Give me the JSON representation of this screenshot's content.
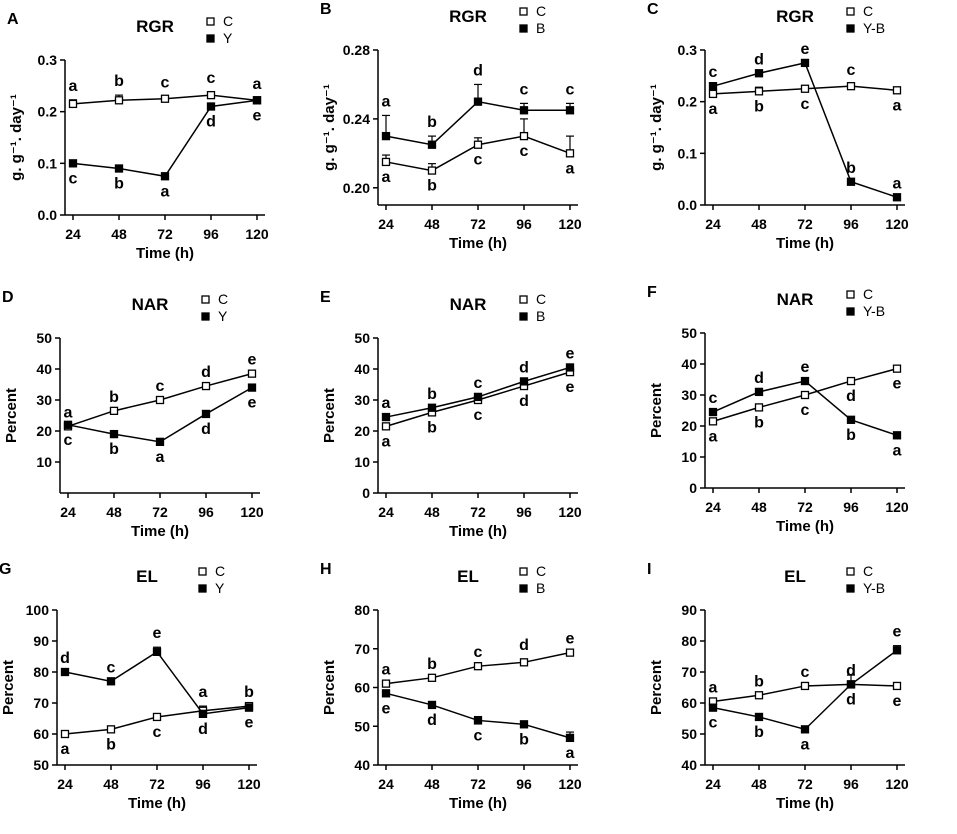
{
  "chart_data": [
    {
      "type": "line",
      "panel": "A",
      "title": "RGR",
      "xlabel": "Time (h)",
      "ylabel": "g. g⁻¹. day⁻¹",
      "x": [
        24,
        48,
        72,
        96,
        120
      ],
      "xticks": [
        "24",
        "48",
        "72",
        "96",
        "120"
      ],
      "ylim": [
        0,
        0.3
      ],
      "yticks": [
        0,
        0.1,
        0.2,
        0.3
      ],
      "ytick_labels": [
        "0.0",
        "0.1",
        "0.2",
        "0.3"
      ],
      "series": [
        {
          "name": "C",
          "marker": "open",
          "values": [
            0.215,
            0.222,
            0.225,
            0.232,
            0.222
          ],
          "errors": [
            0.008,
            0.01,
            0.004,
            0.006,
            0.004
          ],
          "letters": [
            "a",
            "b",
            "c",
            "c",
            "a"
          ],
          "letter_pos": [
            "above",
            "above",
            "above",
            "above",
            "above"
          ]
        },
        {
          "name": "Y",
          "marker": "filled",
          "values": [
            0.1,
            0.09,
            0.075,
            0.21,
            0.222
          ],
          "errors": [
            0,
            0,
            0,
            0,
            0
          ],
          "letters": [
            "c",
            "b",
            "a",
            "d",
            "e"
          ],
          "letter_pos": [
            "below",
            "below",
            "below",
            "below",
            "below"
          ]
        }
      ]
    },
    {
      "type": "line",
      "panel": "B",
      "title": "RGR",
      "xlabel": "Time (h)",
      "ylabel": "g. g⁻¹. day⁻¹",
      "x": [
        24,
        48,
        72,
        96,
        120
      ],
      "xticks": [
        "24",
        "48",
        "72",
        "96",
        "120"
      ],
      "ylim": [
        0.19,
        0.28
      ],
      "yticks": [
        0.2,
        0.24,
        0.28
      ],
      "ytick_labels": [
        "0.20",
        "0.24",
        "0.28"
      ],
      "series": [
        {
          "name": "C",
          "marker": "open",
          "values": [
            0.215,
            0.21,
            0.225,
            0.23,
            0.22
          ],
          "errors": [
            0.004,
            0.004,
            0.004,
            0.01,
            0.01
          ],
          "letters": [
            "a",
            "b",
            "c",
            "c",
            "a"
          ],
          "letter_pos": [
            "below",
            "below",
            "below",
            "below",
            "below"
          ]
        },
        {
          "name": "B",
          "marker": "filled",
          "values": [
            0.23,
            0.225,
            0.25,
            0.245,
            0.245
          ],
          "errors": [
            0.012,
            0.005,
            0.01,
            0.004,
            0.004
          ],
          "letters": [
            "a",
            "b",
            "d",
            "c",
            "c"
          ],
          "letter_pos": [
            "above",
            "above",
            "above",
            "above",
            "above"
          ]
        }
      ]
    },
    {
      "type": "line",
      "panel": "C",
      "title": "RGR",
      "xlabel": "Time (h)",
      "ylabel": "g. g⁻¹. day⁻¹",
      "x": [
        24,
        48,
        72,
        96,
        120
      ],
      "xticks": [
        "24",
        "48",
        "72",
        "96",
        "120"
      ],
      "ylim": [
        0,
        0.3
      ],
      "yticks": [
        0,
        0.1,
        0.2,
        0.3
      ],
      "ytick_labels": [
        "0.0",
        "0.1",
        "0.2",
        "0.3"
      ],
      "series": [
        {
          "name": "C",
          "marker": "open",
          "values": [
            0.215,
            0.22,
            0.225,
            0.23,
            0.222
          ],
          "errors": [
            0.004,
            0.008,
            0.004,
            0.004,
            0.004
          ],
          "letters": [
            "a",
            "b",
            "c",
            "c",
            "a"
          ],
          "letter_pos": [
            "below",
            "below",
            "below",
            "above",
            "below"
          ]
        },
        {
          "name": "Y-B",
          "marker": "filled",
          "values": [
            0.23,
            0.255,
            0.275,
            0.045,
            0.015
          ],
          "errors": [
            0,
            0,
            0,
            0,
            0
          ],
          "letters": [
            "c",
            "d",
            "e",
            "b",
            "a"
          ],
          "letter_pos": [
            "above",
            "above",
            "above",
            "above",
            "above"
          ]
        }
      ]
    },
    {
      "type": "line",
      "panel": "D",
      "title": "NAR",
      "xlabel": "Time (h)",
      "ylabel": "Percent",
      "x": [
        24,
        48,
        72,
        96,
        120
      ],
      "xticks": [
        "24",
        "48",
        "72",
        "96",
        "120"
      ],
      "ylim": [
        0,
        50
      ],
      "yticks": [
        10,
        20,
        30,
        40,
        50
      ],
      "ytick_labels": [
        "10",
        "20",
        "30",
        "40",
        "50"
      ],
      "series": [
        {
          "name": "C",
          "marker": "open",
          "values": [
            21.5,
            26.5,
            30,
            34.5,
            38.5
          ],
          "errors": [
            0,
            0,
            0,
            0,
            0
          ],
          "letters": [
            "a",
            "b",
            "c",
            "d",
            "e"
          ],
          "letter_pos": [
            "above",
            "above",
            "above",
            "above",
            "above"
          ]
        },
        {
          "name": "Y",
          "marker": "filled",
          "values": [
            22,
            19,
            16.5,
            25.5,
            34
          ],
          "errors": [
            0,
            0,
            0,
            0,
            0
          ],
          "letters": [
            "c",
            "b",
            "a",
            "d",
            "e"
          ],
          "letter_pos": [
            "below",
            "below",
            "below",
            "below",
            "below"
          ]
        }
      ]
    },
    {
      "type": "line",
      "panel": "E",
      "title": "NAR",
      "xlabel": "Time (h)",
      "ylabel": "Percent",
      "x": [
        24,
        48,
        72,
        96,
        120
      ],
      "xticks": [
        "24",
        "48",
        "72",
        "96",
        "120"
      ],
      "ylim": [
        0,
        50
      ],
      "yticks": [
        0,
        10,
        20,
        30,
        40,
        50
      ],
      "ytick_labels": [
        "0",
        "10",
        "20",
        "30",
        "40",
        "50"
      ],
      "series": [
        {
          "name": "C",
          "marker": "open",
          "values": [
            21.5,
            26,
            30,
            34.5,
            39
          ],
          "errors": [
            0,
            0,
            0,
            0,
            0
          ],
          "letters": [
            "a",
            "b",
            "c",
            "d",
            "e"
          ],
          "letter_pos": [
            "below",
            "below",
            "below",
            "below",
            "below"
          ]
        },
        {
          "name": "B",
          "marker": "filled",
          "values": [
            24.5,
            27.5,
            31,
            36,
            40.5
          ],
          "errors": [
            0,
            0,
            0,
            0,
            0
          ],
          "letters": [
            "a",
            "b",
            "c",
            "d",
            "e"
          ],
          "letter_pos": [
            "above",
            "above",
            "above",
            "above",
            "above"
          ]
        }
      ]
    },
    {
      "type": "line",
      "panel": "F",
      "title": "NAR",
      "xlabel": "Time (h)",
      "ylabel": "Percent",
      "x": [
        24,
        48,
        72,
        96,
        120
      ],
      "xticks": [
        "24",
        "48",
        "72",
        "96",
        "120"
      ],
      "ylim": [
        0,
        50
      ],
      "yticks": [
        0,
        10,
        20,
        30,
        40,
        50
      ],
      "ytick_labels": [
        "0",
        "10",
        "20",
        "30",
        "40",
        "50"
      ],
      "series": [
        {
          "name": "C",
          "marker": "open",
          "values": [
            21.5,
            26,
            30,
            34.5,
            38.5
          ],
          "errors": [
            0,
            0,
            0,
            0,
            0
          ],
          "letters": [
            "a",
            "b",
            "c",
            "d",
            "e"
          ],
          "letter_pos": [
            "below",
            "below",
            "below",
            "below",
            "below"
          ]
        },
        {
          "name": "Y-B",
          "marker": "filled",
          "values": [
            24.5,
            31,
            34.5,
            22,
            17
          ],
          "errors": [
            0,
            0,
            0,
            0,
            0
          ],
          "letters": [
            "c",
            "d",
            "e",
            "b",
            "a"
          ],
          "letter_pos": [
            "above",
            "above",
            "above",
            "below",
            "below"
          ]
        }
      ]
    },
    {
      "type": "line",
      "panel": "G",
      "title": "EL",
      "xlabel": "Time (h)",
      "ylabel": "Percent",
      "x": [
        24,
        48,
        72,
        96,
        120
      ],
      "xticks": [
        "24",
        "48",
        "72",
        "96",
        "120"
      ],
      "ylim": [
        50,
        100
      ],
      "yticks": [
        50,
        60,
        70,
        80,
        90,
        100
      ],
      "ytick_labels": [
        "50",
        "60",
        "70",
        "80",
        "90",
        "100"
      ],
      "series": [
        {
          "name": "C",
          "marker": "open",
          "values": [
            60,
            61.5,
            65.5,
            67.5,
            69
          ],
          "errors": [
            0,
            0,
            0,
            1.5,
            0
          ],
          "letters": [
            "a",
            "b",
            "c",
            "a",
            "b"
          ],
          "letter_pos": [
            "below",
            "below",
            "below",
            "above",
            "above"
          ]
        },
        {
          "name": "Y",
          "marker": "filled",
          "values": [
            80,
            77,
            86.5,
            66.5,
            68.5
          ],
          "errors": [
            0,
            0,
            1.5,
            0,
            0
          ],
          "letters": [
            "d",
            "c",
            "e",
            "d",
            "e"
          ],
          "letter_pos": [
            "above",
            "above",
            "above",
            "below",
            "below"
          ]
        }
      ]
    },
    {
      "type": "line",
      "panel": "H",
      "title": "EL",
      "xlabel": "Time (h)",
      "ylabel": "Percent",
      "x": [
        24,
        48,
        72,
        96,
        120
      ],
      "xticks": [
        "24",
        "48",
        "72",
        "96",
        "120"
      ],
      "ylim": [
        40,
        80
      ],
      "yticks": [
        40,
        50,
        60,
        70,
        80
      ],
      "ytick_labels": [
        "40",
        "50",
        "60",
        "70",
        "80"
      ],
      "series": [
        {
          "name": "C",
          "marker": "open",
          "values": [
            61,
            62.5,
            65.5,
            66.5,
            69
          ],
          "errors": [
            0,
            0,
            0,
            0.8,
            0
          ],
          "letters": [
            "a",
            "b",
            "c",
            "d",
            "e"
          ],
          "letter_pos": [
            "above",
            "above",
            "above",
            "above",
            "above"
          ]
        },
        {
          "name": "B",
          "marker": "filled",
          "values": [
            58.5,
            55.5,
            51.5,
            50.5,
            47
          ],
          "errors": [
            0,
            0,
            1.0,
            0,
            1.5
          ],
          "letters": [
            "e",
            "d",
            "c",
            "b",
            "a"
          ],
          "letter_pos": [
            "below",
            "below",
            "below",
            "below",
            "below"
          ]
        }
      ]
    },
    {
      "type": "line",
      "panel": "I",
      "title": "EL",
      "xlabel": "Time (h)",
      "ylabel": "Percent",
      "x": [
        24,
        48,
        72,
        96,
        120
      ],
      "xticks": [
        "24",
        "48",
        "72",
        "96",
        "120"
      ],
      "ylim": [
        40,
        90
      ],
      "yticks": [
        40,
        50,
        60,
        70,
        80,
        90
      ],
      "ytick_labels": [
        "40",
        "50",
        "60",
        "70",
        "80",
        "90"
      ],
      "series": [
        {
          "name": "C",
          "marker": "open",
          "values": [
            60.5,
            62.5,
            65.5,
            66,
            65.5
          ],
          "errors": [
            0,
            0,
            0,
            0,
            0
          ],
          "letters": [
            "a",
            "b",
            "c",
            "d",
            "e"
          ],
          "letter_pos": [
            "above",
            "above",
            "above",
            "above",
            "below"
          ]
        },
        {
          "name": "Y-B",
          "marker": "filled",
          "values": [
            58.5,
            55.5,
            51.5,
            66,
            77
          ],
          "errors": [
            0,
            0,
            0,
            3,
            1.5
          ],
          "letters": [
            "c",
            "b",
            "a",
            "d",
            "e"
          ],
          "letter_pos": [
            "below",
            "below",
            "below",
            "below",
            "above"
          ]
        }
      ]
    }
  ]
}
